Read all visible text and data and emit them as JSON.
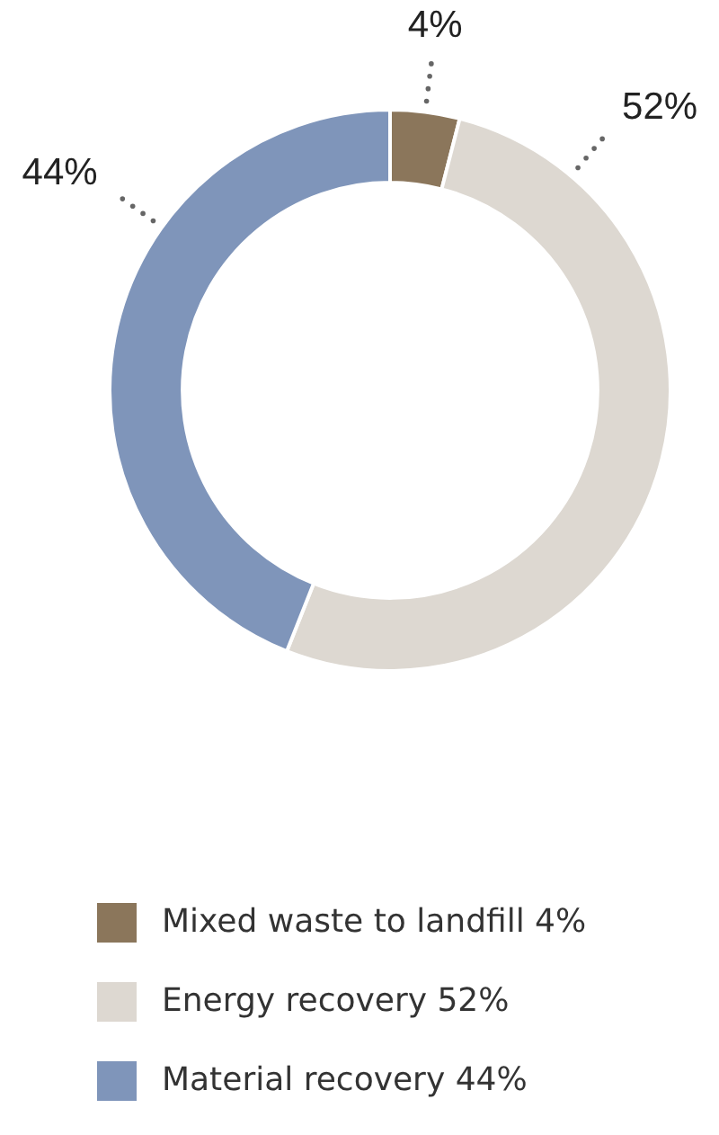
{
  "chart_data": {
    "type": "donut",
    "categories": [
      "Mixed waste to landfill 4%",
      "Energy recovery 52%",
      "Material recovery 44%"
    ],
    "values": [
      4,
      52,
      44
    ],
    "colors": [
      "#8b765b",
      "#ddd8d1",
      "#7f95ba"
    ],
    "value_labels": [
      "4%",
      "52%",
      "44%"
    ],
    "legend": "bottom"
  }
}
